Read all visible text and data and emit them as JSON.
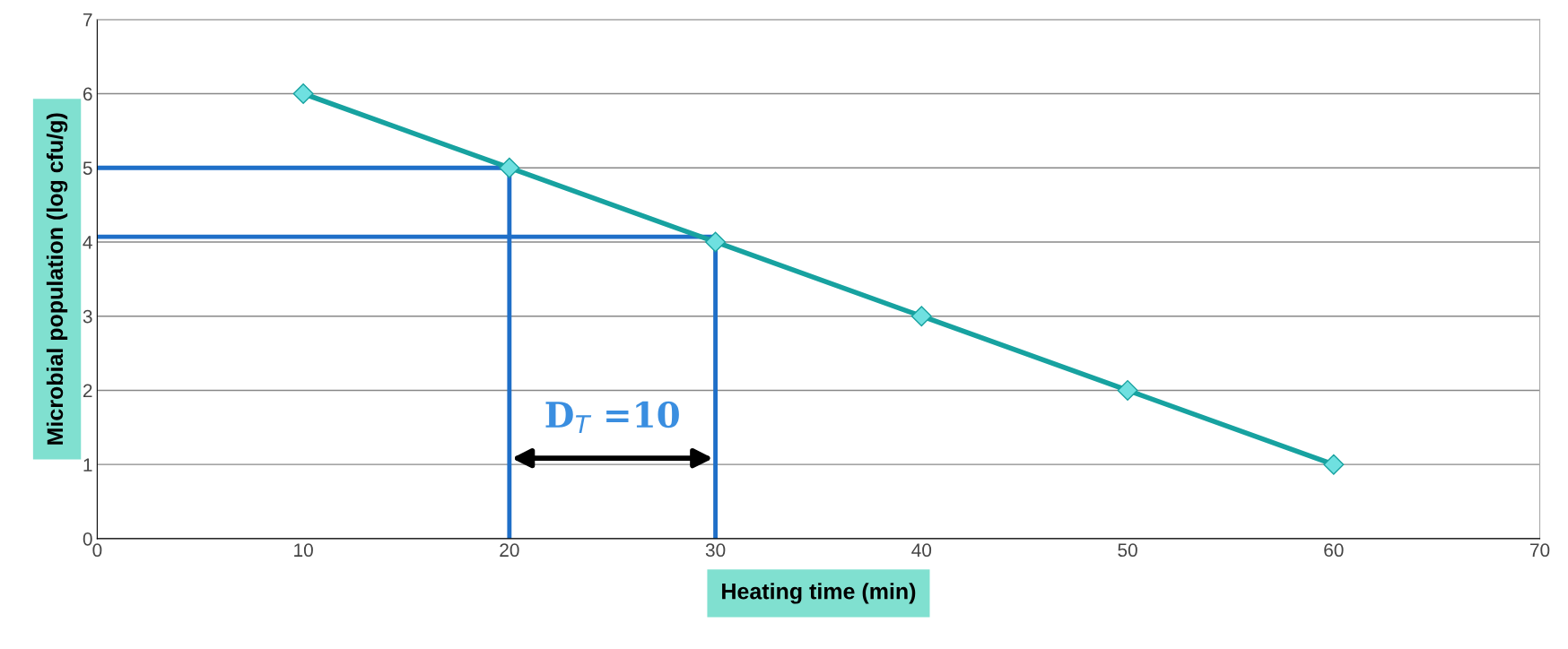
{
  "chart_data": {
    "type": "line",
    "xlabel": "Heating time (min)",
    "ylabel": "Microbial population (log cfu/g)",
    "xlim": [
      0,
      70
    ],
    "xticks": [
      0,
      10,
      20,
      30,
      40,
      50,
      60,
      70
    ],
    "ylim": [
      0,
      7
    ],
    "yticks": [
      0,
      1,
      2,
      3,
      4,
      5,
      6,
      7
    ],
    "grid": "y",
    "series": [
      {
        "color": "#17a2a0",
        "x": [
          10,
          20,
          30,
          40,
          50,
          60
        ],
        "values": [
          6,
          5,
          4,
          3,
          2,
          1
        ],
        "marker": "diamond"
      },
      {
        "color": "#1f6fc8",
        "x": [
          0,
          20,
          20
        ],
        "values": [
          5,
          5,
          0
        ],
        "marker": "none"
      },
      {
        "color": "#1f6fc8",
        "x": [
          0,
          30,
          30
        ],
        "values": [
          4.07,
          4.07,
          0
        ],
        "marker": "none"
      }
    ],
    "annotations": [
      "D$_{T}$ =10"
    ]
  }
}
